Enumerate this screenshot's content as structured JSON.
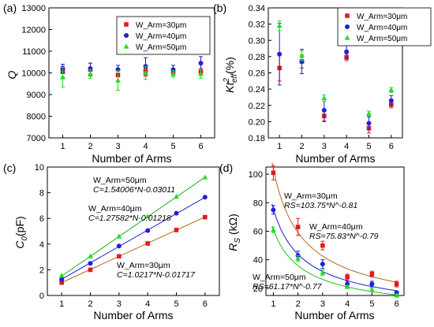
{
  "chart_data": [
    {
      "type": "scatter",
      "panel_label": "(a)",
      "xlabel": "Number of Arms",
      "ylabel": "Q",
      "xlim": [
        0.5,
        6.5
      ],
      "ylim": [
        7000,
        13000
      ],
      "xticks": [
        "1",
        "2",
        "3",
        "4",
        "5",
        "6"
      ],
      "yticks": [
        "7000",
        "8000",
        "9000",
        "10000",
        "11000",
        "12000",
        "13000"
      ],
      "legend_position": "top-right",
      "error_bars": true,
      "series": [
        {
          "name": "W_Arm=30μm",
          "color": "#e31a1c",
          "marker": "square",
          "x": [
            1,
            2,
            3,
            4,
            5,
            6
          ],
          "y": [
            10050,
            10150,
            9900,
            10100,
            10050,
            10050
          ],
          "err": [
            250,
            300,
            300,
            250,
            150,
            150
          ]
        },
        {
          "name": "W_Arm=40μm",
          "color": "#1f1fd6",
          "marker": "circle",
          "x": [
            1,
            2,
            3,
            4,
            5,
            6
          ],
          "y": [
            10200,
            10200,
            10150,
            10300,
            10150,
            10450
          ],
          "err": [
            200,
            250,
            200,
            400,
            200,
            300
          ]
        },
        {
          "name": "W_Arm=50μm",
          "color": "#22dd22",
          "marker": "triangle",
          "x": [
            1,
            2,
            3,
            4,
            5,
            6
          ],
          "y": [
            9800,
            9950,
            9650,
            10000,
            9950,
            9950
          ],
          "err": [
            450,
            200,
            450,
            300,
            150,
            200
          ]
        }
      ]
    },
    {
      "type": "scatter",
      "panel_label": "(b)",
      "xlabel": "Number of Arms",
      "ylabel": "K²eff (%)",
      "ylabel_main": "Kt",
      "ylabel_sup": "2",
      "ylabel_sub": "eff",
      "ylabel_unit": "(%)",
      "xlim": [
        0.5,
        6.5
      ],
      "ylim": [
        0.18,
        0.34
      ],
      "xticks": [
        "1",
        "2",
        "3",
        "4",
        "5",
        "6"
      ],
      "yticks": [
        "0.18",
        "0.20",
        "0.22",
        "0.24",
        "0.26",
        "0.28",
        "0.30",
        "0.32",
        "0.34"
      ],
      "legend_position": "top-right",
      "error_bars": true,
      "series": [
        {
          "name": "W_Arm=30μm",
          "color": "#e31a1c",
          "marker": "square",
          "x": [
            1,
            2,
            3,
            4,
            5,
            6
          ],
          "y": [
            0.266,
            0.274,
            0.207,
            0.279,
            0.192,
            0.221
          ],
          "err": [
            0.016,
            0.008,
            0.006,
            0.004,
            0.006,
            0.004
          ]
        },
        {
          "name": "W_Arm=40μm",
          "color": "#1f1fd6",
          "marker": "circle",
          "x": [
            1,
            2,
            3,
            4,
            5,
            6
          ],
          "y": [
            0.283,
            0.274,
            0.214,
            0.286,
            0.198,
            0.226
          ],
          "err": [
            0.038,
            0.015,
            0.014,
            0.008,
            0.008,
            0.006
          ]
        },
        {
          "name": "W_Arm=50μm",
          "color": "#22dd22",
          "marker": "triangle",
          "x": [
            1,
            2,
            3,
            4,
            5,
            6
          ],
          "y": [
            0.318,
            0.281,
            0.229,
            0.306,
            0.21,
            0.239
          ],
          "err": [
            0.006,
            0.006,
            0.004,
            0.003,
            0.003,
            0.003
          ]
        }
      ]
    },
    {
      "type": "scatter",
      "panel_label": "(c)",
      "xlabel": "Number of Arms",
      "ylabel": "C0(pF)",
      "ylabel_main": "C",
      "ylabel_sub": "0",
      "ylabel_unit": "(pF)",
      "xlim": [
        0.5,
        6.5
      ],
      "ylim": [
        0,
        10
      ],
      "xticks": [
        "1",
        "2",
        "3",
        "4",
        "5",
        "6"
      ],
      "yticks": [
        "0",
        "2",
        "4",
        "6",
        "8",
        "10"
      ],
      "fit_lines": true,
      "series": [
        {
          "name": "W_Arm=30μm",
          "color": "#e31a1c",
          "marker": "square",
          "fit_color": "#b5651d",
          "x": [
            1,
            2,
            3,
            4,
            5,
            6
          ],
          "y": [
            1.0,
            2.0,
            3.05,
            4.05,
            5.1,
            6.1
          ],
          "fit": [
            1.0217,
            -0.01717
          ],
          "annotation": [
            "W_Arm=30μm",
            "C=1.0217*N-0.01717"
          ]
        },
        {
          "name": "W_Arm=40μm",
          "color": "#1f1fd6",
          "marker": "circle",
          "fit_color": "#1f1fd6",
          "x": [
            1,
            2,
            3,
            4,
            5,
            6
          ],
          "y": [
            1.25,
            2.5,
            3.85,
            5.05,
            6.4,
            7.65
          ],
          "fit": [
            1.27582,
            -0.01218
          ],
          "annotation": [
            "W_Arm=40μm",
            "C=1.27582*N-0.01218"
          ]
        },
        {
          "name": "W_Arm=50μm",
          "color": "#22dd22",
          "marker": "triangle",
          "fit_color": "#22aa22",
          "x": [
            1,
            2,
            3,
            4,
            5,
            6
          ],
          "y": [
            1.55,
            3.05,
            4.6,
            6.15,
            7.7,
            9.2
          ],
          "fit": [
            1.54006,
            -0.03011
          ],
          "annotation": [
            "W_Arm=50μm",
            "C=1.54006*N-0.03011"
          ]
        }
      ]
    },
    {
      "type": "scatter",
      "panel_label": "(d)",
      "xlabel": "Number of Arms",
      "ylabel": "RS (kΩ)",
      "ylabel_main": "R",
      "ylabel_sub": "S",
      "ylabel_unit": " (kΩ)",
      "xlim": [
        0.7,
        6.3
      ],
      "ylim": [
        15,
        105
      ],
      "xticks": [
        "1",
        "2",
        "3",
        "4",
        "5",
        "6"
      ],
      "yticks": [
        "20",
        "40",
        "60",
        "80",
        "100"
      ],
      "error_bars": true,
      "fit_lines": true,
      "series": [
        {
          "name": "W_Arm=30μm",
          "color": "#e31a1c",
          "marker": "square",
          "fit_color": "#b5651d",
          "x": [
            1,
            2,
            3,
            4,
            5,
            6
          ],
          "y": [
            101,
            63,
            50,
            28,
            30,
            23
          ],
          "err": [
            5,
            6,
            3,
            2,
            2,
            2
          ],
          "fit_power": [
            103.75,
            -0.81
          ],
          "annotation": [
            "W_Arm=30μm",
            "RS=103.75*N^-0.81"
          ]
        },
        {
          "name": "W_Arm=40μm",
          "color": "#1f1fd6",
          "marker": "circle",
          "fit_color": "#1f1fd6",
          "x": [
            1,
            2,
            3,
            4,
            5,
            6
          ],
          "y": [
            75,
            43,
            37,
            23,
            23,
            17
          ],
          "err": [
            3,
            3,
            3,
            2,
            2,
            1
          ],
          "fit_power": [
            75.83,
            -0.79
          ],
          "annotation": [
            "W_Arm=40μm",
            "RS=75.83*N^-0.79"
          ]
        },
        {
          "name": "W_Arm=50μm",
          "color": "#22dd22",
          "marker": "triangle",
          "fit_color": "#22bb22",
          "x": [
            1,
            2,
            3,
            4,
            5,
            6
          ],
          "y": [
            61,
            41,
            31,
            21,
            19,
            15
          ],
          "err": [
            2,
            2,
            2,
            1,
            1,
            1
          ],
          "fit_power": [
            61.17,
            -0.77
          ],
          "annotation": [
            "W_Arm=50μm",
            "RS=61.17*N^-0.77"
          ]
        }
      ]
    }
  ]
}
